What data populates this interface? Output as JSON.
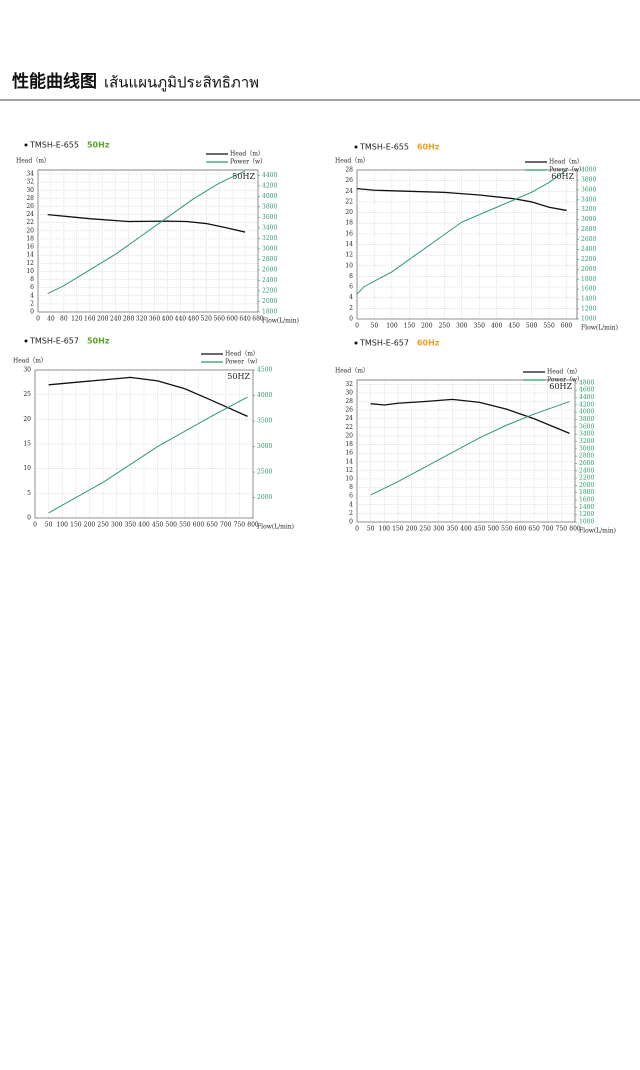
{
  "header": {
    "title": "性能曲线图",
    "subtitle": "เส้นแผนภูมิประสิทธิภาพ"
  },
  "chart_data": [
    {
      "type": "line",
      "label": "TMSH-E-655",
      "freq": "50Hz",
      "freq_color": "#5aa52c",
      "annotation": "50HZ",
      "ylabel": "Head（m）",
      "xlabel": "Flow(L/min)",
      "xlim": [
        0,
        680
      ],
      "xticks": [
        0,
        40,
        80,
        120,
        160,
        200,
        240,
        280,
        320,
        360,
        400,
        440,
        480,
        520,
        560,
        600,
        640,
        680
      ],
      "ylim": [
        0,
        35
      ],
      "yticks": [
        0,
        2,
        4,
        6,
        8,
        10,
        12,
        14,
        16,
        18,
        20,
        22,
        24,
        26,
        28,
        30,
        32,
        34
      ],
      "y2lim": [
        1800,
        4500
      ],
      "y2ticks": [
        1800,
        2000,
        2200,
        2400,
        2600,
        2800,
        3000,
        3200,
        3400,
        3600,
        3800,
        4000,
        4200,
        4400
      ],
      "grid": true,
      "series": [
        {
          "name": "Head（m）",
          "color": "#111111",
          "x": [
            30,
            160,
            280,
            400,
            460,
            520,
            580,
            640
          ],
          "values": [
            24,
            23,
            22.3,
            22.4,
            22.3,
            21.8,
            20.8,
            19.7
          ]
        },
        {
          "name": "Power（w）",
          "color": "#2e9a6a",
          "axis": "y2",
          "x": [
            30,
            80,
            160,
            240,
            320,
            400,
            480,
            560,
            640
          ],
          "values": [
            2150,
            2300,
            2600,
            2900,
            3250,
            3600,
            3950,
            4250,
            4480
          ]
        }
      ]
    },
    {
      "type": "line",
      "label": "TMSH-E-655",
      "freq": "60Hz",
      "freq_color": "#f0a020",
      "annotation": "60HZ",
      "ylabel": "Head（m）",
      "xlabel": "Flow(L/min)",
      "xlim": [
        0,
        630
      ],
      "xticks": [
        0,
        50,
        100,
        150,
        200,
        250,
        300,
        350,
        400,
        450,
        500,
        550,
        600
      ],
      "ylim": [
        0,
        28
      ],
      "yticks": [
        0,
        2,
        4,
        6,
        8,
        10,
        12,
        14,
        16,
        18,
        20,
        22,
        24,
        26,
        28
      ],
      "y2lim": [
        1000,
        4000
      ],
      "y2ticks": [
        1000,
        1200,
        1400,
        1600,
        1800,
        2000,
        2200,
        2400,
        2600,
        2800,
        3000,
        3200,
        3400,
        3600,
        3800,
        4000
      ],
      "grid": true,
      "series": [
        {
          "name": "Head（m）",
          "color": "#111111",
          "x": [
            0,
            50,
            150,
            250,
            350,
            450,
            500,
            550,
            600
          ],
          "values": [
            24.5,
            24.2,
            24,
            23.8,
            23.3,
            22.6,
            22,
            21,
            20.4
          ]
        },
        {
          "name": "Power（w）",
          "color": "#2e9a6a",
          "axis": "y2",
          "x": [
            0,
            20,
            100,
            200,
            300,
            400,
            500,
            550,
            600
          ],
          "values": [
            1500,
            1650,
            1950,
            2450,
            2950,
            3250,
            3550,
            3750,
            4000
          ]
        }
      ]
    },
    {
      "type": "line",
      "label": "TMSH-E-657",
      "freq": "50Hz",
      "freq_color": "#5aa52c",
      "annotation": "50HZ",
      "ylabel": "Head（m）",
      "xlabel": "Flow(L/min)",
      "xlim": [
        0,
        800
      ],
      "xticks": [
        0,
        50,
        100,
        150,
        200,
        250,
        300,
        350,
        400,
        450,
        500,
        550,
        600,
        650,
        700,
        750,
        800
      ],
      "ylim": [
        0,
        30
      ],
      "yticks": [
        0,
        5,
        10,
        15,
        20,
        25,
        30
      ],
      "y2lim": [
        1600,
        4500
      ],
      "y2ticks": [
        2000,
        2500,
        3000,
        3500,
        4000,
        4500
      ],
      "grid": true,
      "series": [
        {
          "name": "Head（m）",
          "color": "#111111",
          "x": [
            50,
            150,
            250,
            350,
            450,
            550,
            650,
            780
          ],
          "values": [
            27,
            27.5,
            28,
            28.5,
            27.8,
            26.2,
            23.8,
            20.6
          ]
        },
        {
          "name": "Power（w）",
          "color": "#2e9a6a",
          "axis": "y2",
          "x": [
            50,
            150,
            250,
            350,
            450,
            550,
            650,
            780
          ],
          "values": [
            1700,
            2000,
            2300,
            2650,
            3000,
            3300,
            3600,
            3970
          ]
        }
      ]
    },
    {
      "type": "line",
      "label": "TMSH-E-657",
      "freq": "60Hz",
      "freq_color": "#f0a020",
      "annotation": "60HZ",
      "ylabel": "Head（m）",
      "xlabel": "Flow(L/min)",
      "xlim": [
        0,
        800
      ],
      "xticks": [
        0,
        50,
        100,
        150,
        200,
        250,
        300,
        350,
        400,
        450,
        500,
        550,
        600,
        650,
        700,
        750,
        800
      ],
      "ylim": [
        0,
        33
      ],
      "yticks": [
        0,
        2,
        4,
        6,
        8,
        10,
        12,
        14,
        16,
        18,
        20,
        22,
        24,
        26,
        28,
        30,
        32
      ],
      "y2lim": [
        1000,
        4880
      ],
      "y2ticks": [
        1000,
        1200,
        1400,
        1600,
        1800,
        2000,
        2200,
        2400,
        2600,
        2800,
        3000,
        3200,
        3400,
        3600,
        3800,
        4000,
        4200,
        4400,
        4600,
        4800
      ],
      "grid": true,
      "series": [
        {
          "name": "Head（m）",
          "color": "#111111",
          "x": [
            50,
            100,
            150,
            250,
            350,
            450,
            550,
            650,
            780
          ],
          "values": [
            27.5,
            27.2,
            27.6,
            28,
            28.5,
            27.8,
            26.2,
            24,
            20.6
          ]
        },
        {
          "name": "Power（w）",
          "color": "#2e9a6a",
          "axis": "y2",
          "x": [
            50,
            150,
            250,
            350,
            450,
            550,
            650,
            780
          ],
          "values": [
            1740,
            2100,
            2500,
            2900,
            3300,
            3650,
            3950,
            4290
          ]
        }
      ]
    }
  ]
}
